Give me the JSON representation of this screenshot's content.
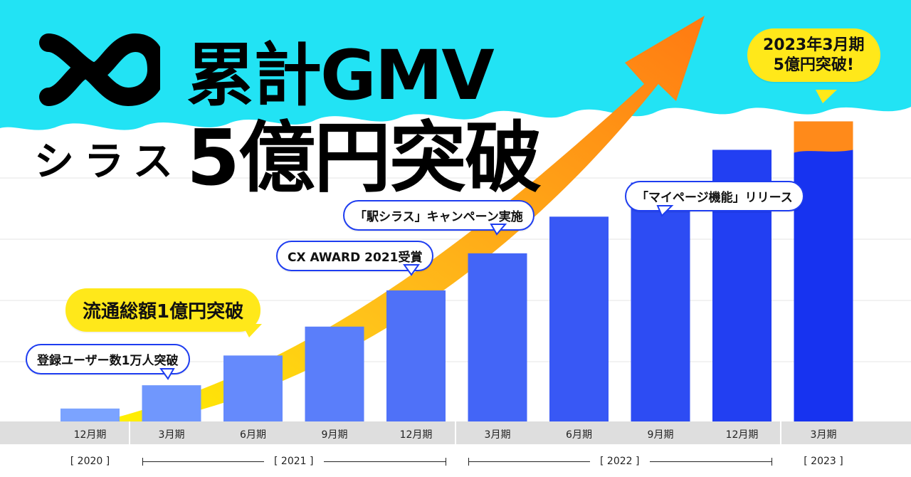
{
  "logo": {
    "text": "シラス"
  },
  "headline": {
    "line1": "累計GMV",
    "line2": "5億円突破"
  },
  "colors": {
    "sky": "#22e3f4",
    "bar_light": "#7ba3ff",
    "bar_dark": "#1733f0",
    "arrow": "#ff8a1a",
    "bubble_yellow": "#ffe81a",
    "axis_band": "#dedede"
  },
  "chart_data": {
    "type": "bar",
    "categories": [
      "12月期",
      "3月期",
      "6月期",
      "9月期",
      "12月期",
      "3月期",
      "6月期",
      "9月期",
      "12月期",
      "3月期"
    ],
    "years": [
      {
        "label": "[ 2020 ]",
        "from": 0,
        "to": 0
      },
      {
        "label": "[ 2021 ]",
        "from": 1,
        "to": 4
      },
      {
        "label": "[ 2022 ]",
        "from": 5,
        "to": 8
      },
      {
        "label": "[ 2023 ]",
        "from": 9,
        "to": 9
      }
    ],
    "values": [
      0.3,
      0.84,
      1.53,
      2.2,
      3.04,
      3.9,
      4.75,
      5.54,
      6.3,
      6.96
    ],
    "ylim": [
      0,
      7.1
    ],
    "grid": true,
    "highlight_index": 9
  },
  "annotations": [
    {
      "text": "登録ユーザー数1万人突破",
      "style": "white",
      "bar": 1
    },
    {
      "text": "流通総額1億円突破",
      "style": "yellow",
      "bar": 2
    },
    {
      "text": "CX AWARD 2021受賞",
      "style": "white",
      "bar": 4
    },
    {
      "text": "「駅シラス」キャンペーン実施",
      "style": "white",
      "bar": 5
    },
    {
      "text": "「マイページ機能」リリース",
      "style": "white",
      "bar": 7
    }
  ],
  "callout": {
    "line1": "2023年3月期",
    "line2": "5億円突破!"
  }
}
